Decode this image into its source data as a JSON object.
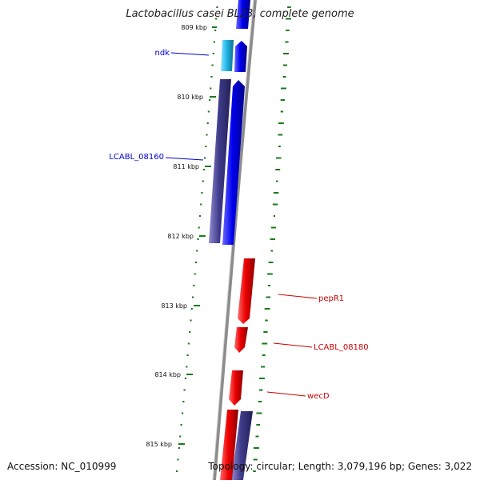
{
  "title": "Lactobacillus casei BL23, complete genome",
  "footer": {
    "accession": "Accession: NC_010999",
    "topology": "Topology: circular; Length: 3,079,196 bp; Genes: 3,022"
  },
  "ticks": [
    {
      "label": "809 kbp"
    },
    {
      "label": "810 kbp"
    },
    {
      "label": "811 kbp"
    },
    {
      "label": "812 kbp"
    },
    {
      "label": "813 kbp"
    },
    {
      "label": "814 kbp"
    },
    {
      "label": "815 kbp"
    }
  ],
  "genes": [
    {
      "name": "ndk",
      "strand": "forward",
      "color": "#0000ee"
    },
    {
      "name": "LCABL_08160",
      "strand": "forward",
      "color": "#0000ee"
    },
    {
      "name": "pepR1",
      "strand": "reverse",
      "color": "#ee0000"
    },
    {
      "name": "LCABL_08180",
      "strand": "reverse",
      "color": "#ee0000"
    },
    {
      "name": "wecD",
      "strand": "reverse",
      "color": "#ee0000"
    }
  ],
  "colors": {
    "forward_cds": "#0000ee",
    "reverse_cds": "#ee0000",
    "cog_cyan": "#22b8e8",
    "cog_purple": "#403c8c",
    "backbone": "#888888",
    "tick": "#1a7a1a",
    "label_blue": "#0000cc",
    "label_red": "#cc0000"
  }
}
